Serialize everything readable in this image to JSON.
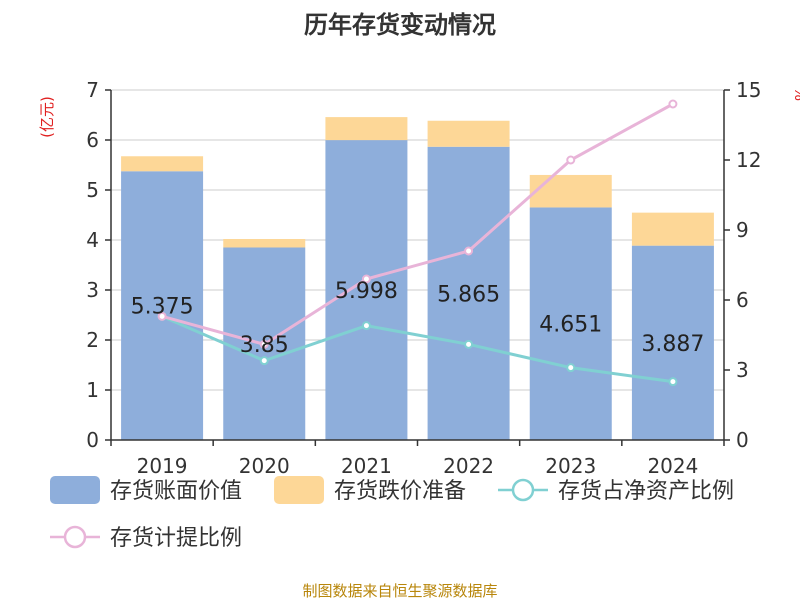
{
  "chart_data": {
    "type": "bar",
    "title": "历年存货变动情况",
    "categories": [
      "2019",
      "2020",
      "2021",
      "2022",
      "2023",
      "2024"
    ],
    "left_axis": {
      "unit": "(亿元)",
      "ylim": [
        0,
        7
      ],
      "ticks": [
        0,
        1,
        2,
        3,
        4,
        5,
        6,
        7
      ]
    },
    "right_axis": {
      "unit": "%",
      "ylim": [
        0,
        15
      ],
      "ticks": [
        0,
        3,
        6,
        9,
        12,
        15
      ]
    },
    "series": [
      {
        "name": "存货账面价值",
        "kind": "bar",
        "stack": "inventory",
        "axis": "left",
        "color": "#8eaedb",
        "values": [
          5.375,
          3.85,
          5.998,
          5.865,
          4.651,
          3.887
        ],
        "labels": [
          "5.375",
          "3.85",
          "5.998",
          "5.865",
          "4.651",
          "3.887"
        ]
      },
      {
        "name": "存货跌价准备",
        "kind": "bar",
        "stack": "inventory",
        "axis": "left",
        "color": "#fdd797",
        "values": [
          0.3,
          0.17,
          0.46,
          0.52,
          0.65,
          0.66
        ]
      },
      {
        "name": "存货占净资产比例",
        "kind": "line",
        "axis": "right",
        "color": "#80d0d2",
        "values": [
          5.3,
          3.4,
          4.9,
          4.1,
          3.1,
          2.5
        ]
      },
      {
        "name": "存货计提比例",
        "kind": "line",
        "axis": "right",
        "color": "#e8b4d8",
        "values": [
          5.3,
          4.1,
          6.9,
          8.1,
          12.0,
          14.4
        ]
      }
    ],
    "grid": true,
    "legend_position": "bottom"
  },
  "source": "制图数据来自恒生聚源数据库"
}
